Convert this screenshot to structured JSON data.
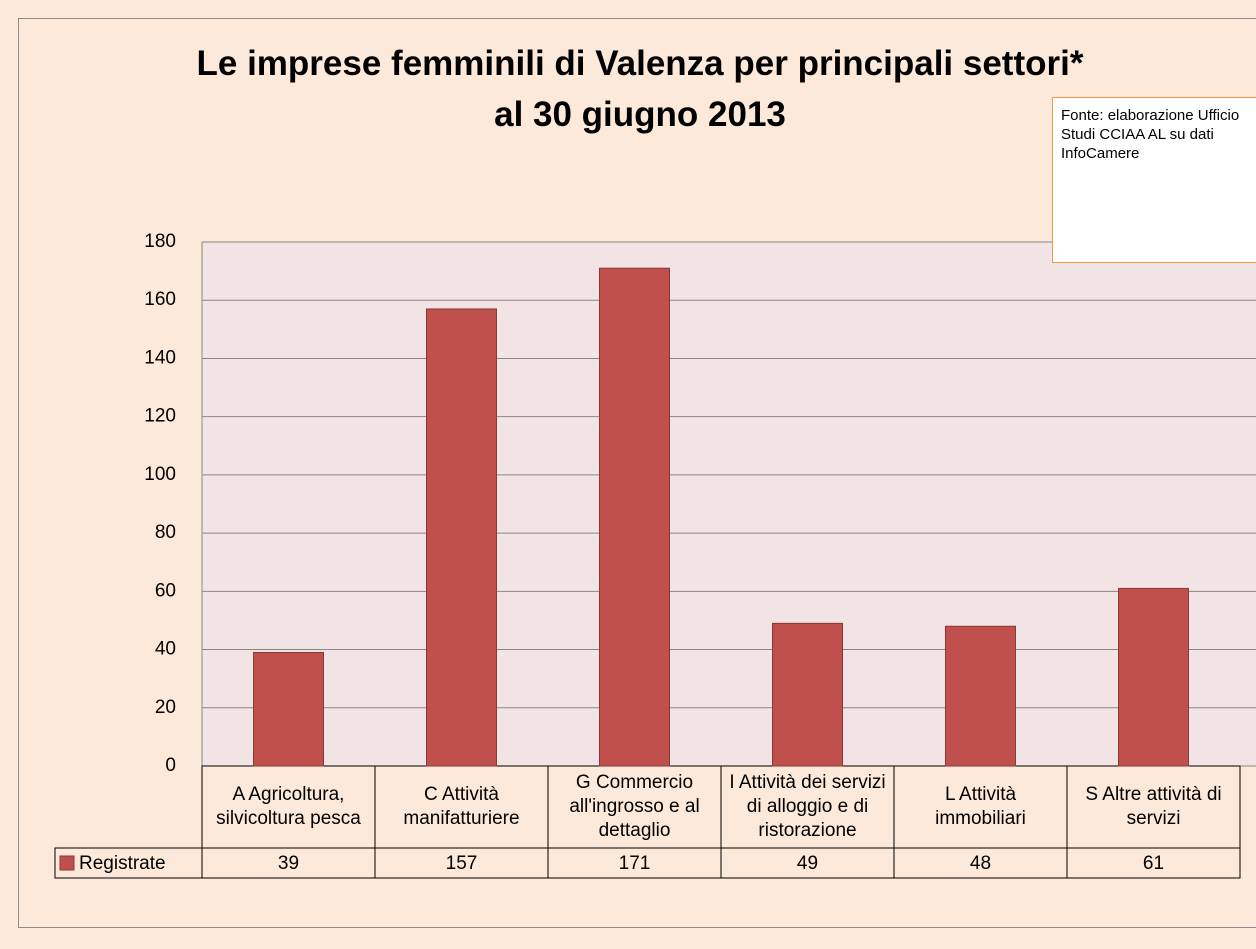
{
  "chart_data": {
    "type": "bar",
    "title": "Le imprese femminili di Valenza per principali settori*",
    "subtitle": "al 30 giugno 2013",
    "annotation": "Fonte: elaborazione Ufficio Studi CCIAA AL su dati InfoCamere",
    "categories": [
      "A Agricoltura, silvicoltura pesca",
      "C Attività manifatturiere",
      "G Commercio all'ingrosso e al dettaglio",
      "I Attività dei servizi di alloggio e di ristorazione",
      "L Attività immobiliari",
      "S Altre attività di servizi"
    ],
    "series": [
      {
        "name": "Registrate",
        "color": "#c0504d",
        "values": [
          39,
          157,
          171,
          49,
          48,
          61
        ]
      }
    ],
    "ylim": [
      0,
      180
    ],
    "yticks": [
      0,
      20,
      40,
      60,
      80,
      100,
      120,
      140,
      160,
      180
    ],
    "grid": true
  }
}
